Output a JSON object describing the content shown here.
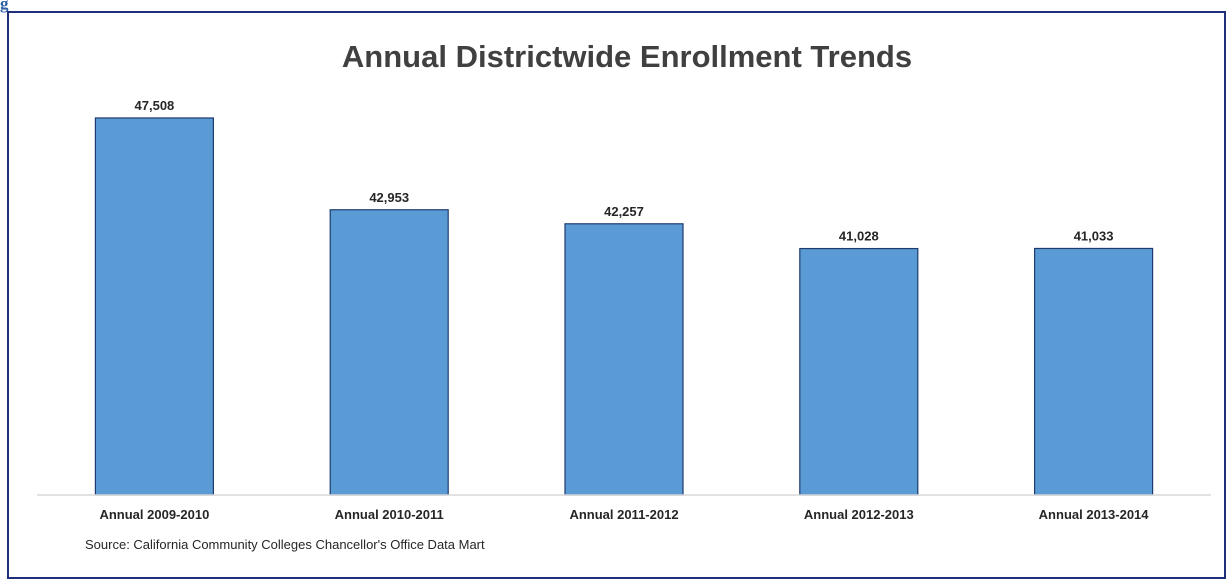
{
  "figure_tag": "g",
  "chart_data": {
    "type": "bar",
    "title": "Annual Districtwide Enrollment Trends",
    "categories": [
      "Annual 2009-2010",
      "Annual 2010-2011",
      "Annual 2011-2012",
      "Annual 2012-2013",
      "Annual 2013-2014"
    ],
    "values": [
      47508,
      42953,
      42257,
      41028,
      41033
    ],
    "value_labels": [
      "47,508",
      "42,953",
      "42,257",
      "41,028",
      "41,033"
    ],
    "xlabel": "",
    "ylabel": "",
    "ylim": [
      28800,
      48300
    ],
    "grid": false,
    "legend": "none",
    "source": "Source:  California Community Colleges Chancellor's Office Data Mart",
    "bar_color": "#5b9bd5",
    "bar_edge_color": "#1f3a6e"
  }
}
